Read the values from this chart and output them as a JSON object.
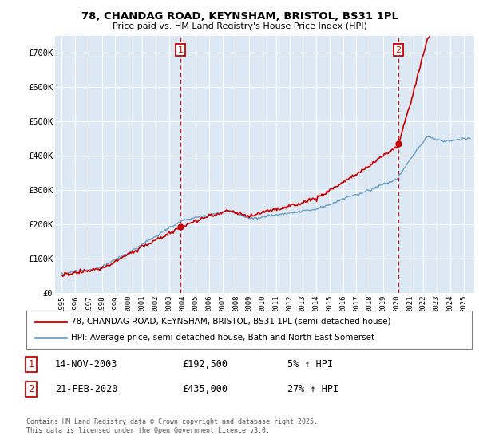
{
  "title_line1": "78, CHANDAG ROAD, KEYNSHAM, BRISTOL, BS31 1PL",
  "title_line2": "Price paid vs. HM Land Registry's House Price Index (HPI)",
  "ylabel_values": [
    "£0",
    "£100K",
    "£200K",
    "£300K",
    "£400K",
    "£500K",
    "£600K",
    "£700K"
  ],
  "yticks": [
    0,
    100000,
    200000,
    300000,
    400000,
    500000,
    600000,
    700000
  ],
  "ylim": [
    0,
    750000
  ],
  "sale1_date": "14-NOV-2003",
  "sale1_price": 192500,
  "sale1_pct": "5%",
  "sale1_year": 2003.87,
  "sale2_date": "21-FEB-2020",
  "sale2_price": 435000,
  "sale2_pct": "27%",
  "sale2_year": 2020.13,
  "legend_line1": "78, CHANDAG ROAD, KEYNSHAM, BRISTOL, BS31 1PL (semi-detached house)",
  "legend_line2": "HPI: Average price, semi-detached house, Bath and North East Somerset",
  "footer": "Contains HM Land Registry data © Crown copyright and database right 2025.\nThis data is licensed under the Open Government Licence v3.0.",
  "hpi_color": "#6ca0c8",
  "price_color": "#cc0000",
  "dashed_line_color": "#cc0000",
  "background_color": "#dce9f5",
  "plot_bg_color": "#dce9f5",
  "xlim_left": 1994.5,
  "xlim_right": 2025.8
}
